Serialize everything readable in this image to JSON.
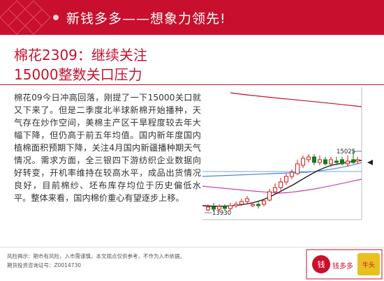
{
  "banner": {
    "title": "新钱多多——想象力领先!"
  },
  "headline": {
    "line1": "棉花2309：继续关注",
    "line2": "15000整数关口压力"
  },
  "body": {
    "text": "棉花09今日冲高回落，刚提了一下15000关口就又下来了。但是二季度北半球新棉开始播种，天气存在炒作空间，美棉主产区干旱程度较去年大幅下降，但仍高于前五年均值。国内新年度国内植棉面积预期下降，关注4月国内新疆播种期天气情况。需求方面，全三银四下游纺织企业数据向好转变，开机率维持在较高水平，成品出货情况良好，目前棉纱、坯布库存均位于历史偏低水平。整体来看，国内棉价重心有望逐步上移。"
  },
  "chart_data": {
    "type": "candlestick",
    "annotations": {
      "high": "15025",
      "low": "13930"
    },
    "colors": {
      "up": "#d01c1c",
      "down": "#1a7a1a",
      "ma_long": "#c8102e",
      "ma_mid": "#cc44aa",
      "ma_short": "#4a7fd6",
      "price_ma": "#1a1a1a"
    }
  },
  "footer": {
    "disclaimer1": "风险揭示：期市有风险，入市需谨慎。本文观点仅供参考，不作为入市依据。",
    "disclaimer2": "期货投资咨询证号：Z0014730"
  },
  "logo": {
    "brand": "钱多多",
    "tag": "牛头"
  }
}
